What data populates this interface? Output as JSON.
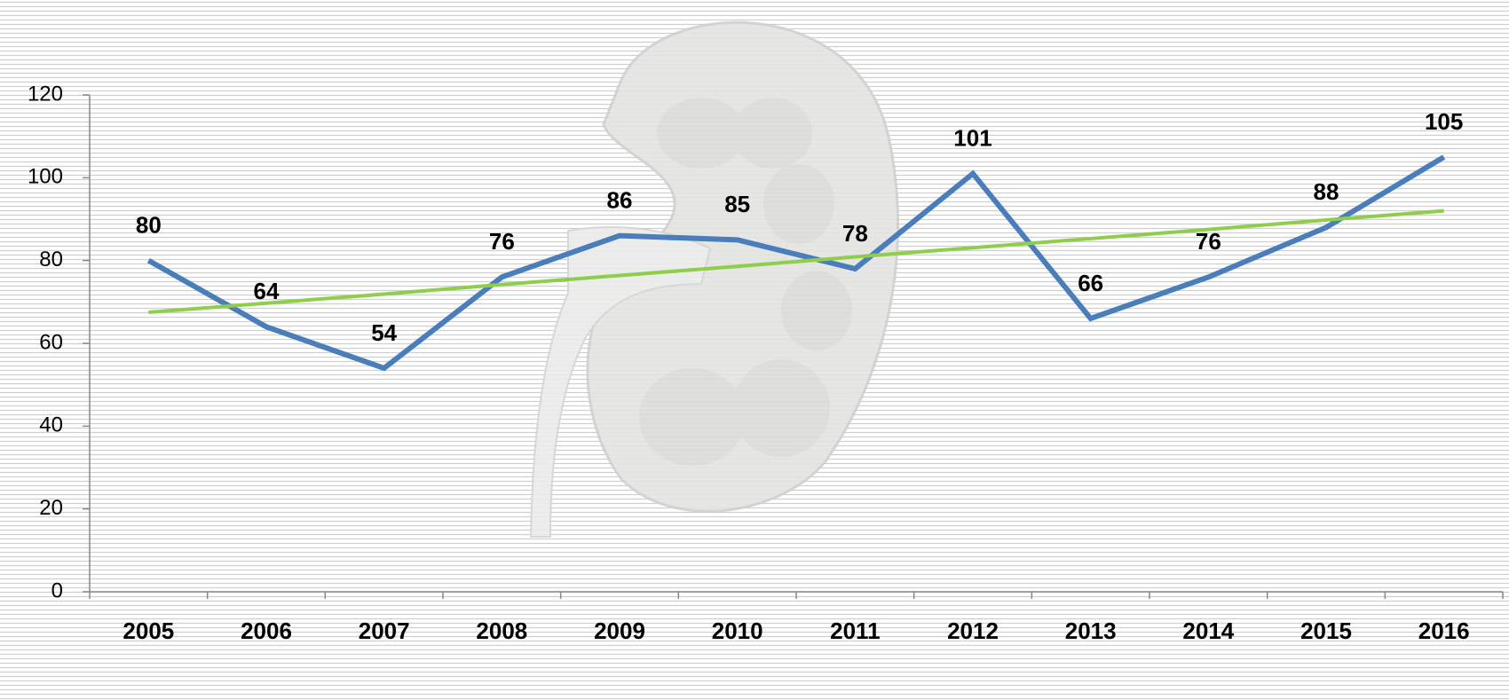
{
  "chart_data": {
    "type": "line",
    "categories": [
      "2005",
      "2006",
      "2007",
      "2008",
      "2009",
      "2010",
      "2011",
      "2012",
      "2013",
      "2014",
      "2015",
      "2016"
    ],
    "series": [
      {
        "color": "#4a7ebb",
        "values": [
          80,
          64,
          54,
          76,
          86,
          85,
          78,
          101,
          66,
          76,
          88,
          105
        ],
        "data_labels": true
      },
      {
        "color": "#8fce4c",
        "values": [
          67.5,
          69.7,
          71.9,
          74.2,
          76.4,
          78.6,
          80.9,
          83.1,
          85.3,
          87.5,
          89.8,
          92
        ],
        "data_labels": false
      }
    ],
    "ylim": [
      0,
      120
    ],
    "yticks": [
      0,
      20,
      40,
      60,
      80,
      100,
      120
    ],
    "grid": false
  }
}
